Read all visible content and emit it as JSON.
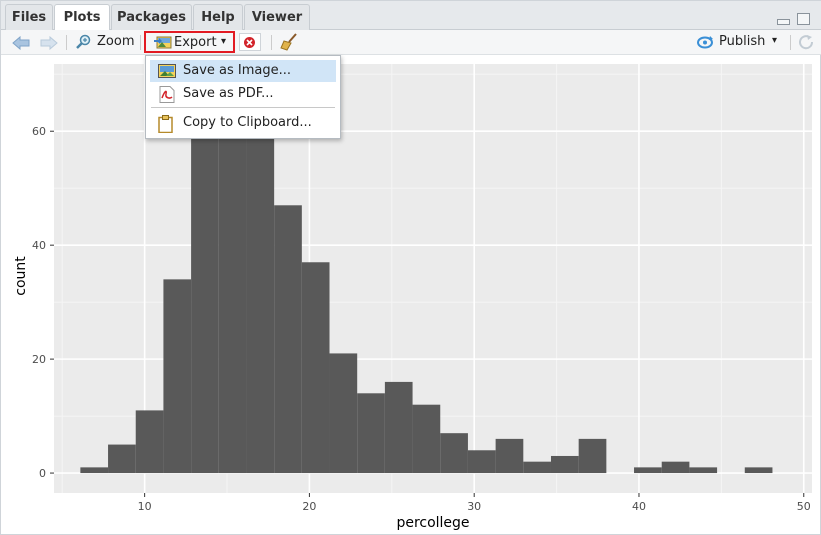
{
  "tabs": [
    {
      "label": "Files",
      "active": false
    },
    {
      "label": "Plots",
      "active": true
    },
    {
      "label": "Packages",
      "active": false
    },
    {
      "label": "Help",
      "active": false
    },
    {
      "label": "Viewer",
      "active": false
    }
  ],
  "toolbar": {
    "zoom_label": "Zoom",
    "export_label": "Export",
    "publish_label": "Publish"
  },
  "export_menu": {
    "items": [
      {
        "label": "Save as Image...",
        "icon": "image-icon",
        "highlighted": true
      },
      {
        "label": "Save as PDF...",
        "icon": "pdf-icon",
        "highlighted": false
      },
      {
        "label": "Copy to Clipboard...",
        "icon": "clipboard-icon",
        "highlighted": false
      }
    ]
  },
  "colors": {
    "panel_bg": "#ebebeb",
    "bar_fill": "#595959",
    "export_highlight": "#e21b23",
    "menu_highlight": "#d1e5f7"
  },
  "chart_data": {
    "type": "bar",
    "subtype": "histogram",
    "xlabel": "percollege",
    "ylabel": "count",
    "xlim": [
      4.5,
      50.5
    ],
    "ylim": [
      -3.5,
      71.8
    ],
    "x_ticks": [
      10,
      20,
      30,
      40,
      50
    ],
    "y_ticks": [
      0,
      20,
      40,
      60
    ],
    "bin_width": 1.68,
    "bins": [
      {
        "start": 6.1,
        "count": 1
      },
      {
        "start": 7.78,
        "count": 5
      },
      {
        "start": 9.46,
        "count": 11
      },
      {
        "start": 11.14,
        "count": 34
      },
      {
        "start": 12.82,
        "count": 71
      },
      {
        "start": 14.5,
        "count": 66
      },
      {
        "start": 16.18,
        "count": 62
      },
      {
        "start": 17.86,
        "count": 47
      },
      {
        "start": 19.54,
        "count": 37
      },
      {
        "start": 21.22,
        "count": 21
      },
      {
        "start": 22.9,
        "count": 14
      },
      {
        "start": 24.58,
        "count": 16
      },
      {
        "start": 26.26,
        "count": 12
      },
      {
        "start": 27.94,
        "count": 7
      },
      {
        "start": 29.62,
        "count": 4
      },
      {
        "start": 31.3,
        "count": 6
      },
      {
        "start": 32.98,
        "count": 2
      },
      {
        "start": 34.66,
        "count": 3
      },
      {
        "start": 36.34,
        "count": 6
      },
      {
        "start": 38.02,
        "count": 0
      },
      {
        "start": 39.7,
        "count": 1
      },
      {
        "start": 41.38,
        "count": 2
      },
      {
        "start": 43.06,
        "count": 1
      },
      {
        "start": 44.74,
        "count": 0
      },
      {
        "start": 46.42,
        "count": 1
      }
    ],
    "grid": true,
    "legend": "none"
  }
}
